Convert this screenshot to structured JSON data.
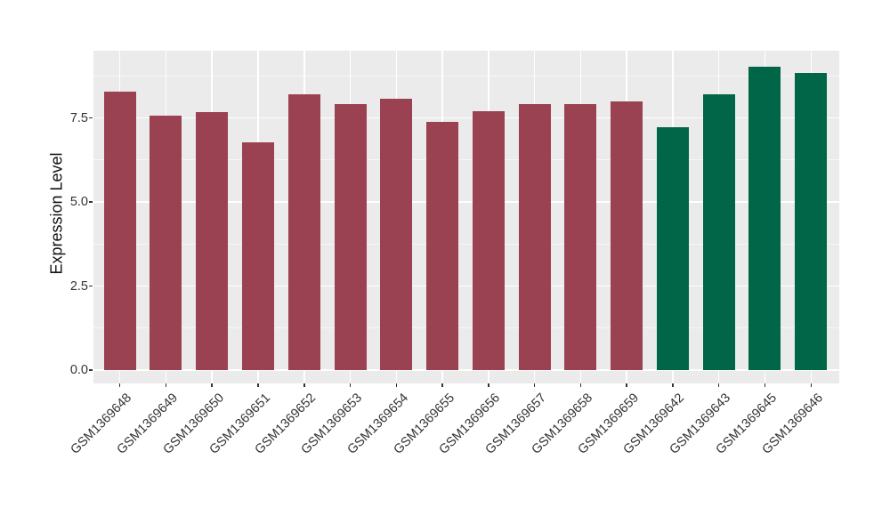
{
  "chart_data": {
    "type": "bar",
    "title": "",
    "xlabel": "",
    "ylabel": "Expression Level",
    "categories": [
      "GSM1369648",
      "GSM1369649",
      "GSM1369650",
      "GSM1369651",
      "GSM1369652",
      "GSM1369653",
      "GSM1369654",
      "GSM1369655",
      "GSM1369656",
      "GSM1369657",
      "GSM1369658",
      "GSM1369659",
      "GSM1369642",
      "GSM1369643",
      "GSM1369645",
      "GSM1369646"
    ],
    "values": [
      8.27,
      7.57,
      7.68,
      6.76,
      8.19,
      7.91,
      8.08,
      7.38,
      7.71,
      7.92,
      7.92,
      7.98,
      7.22,
      8.2,
      9.03,
      8.83
    ],
    "bar_colors": [
      "#9A4252",
      "#9A4252",
      "#9A4252",
      "#9A4252",
      "#9A4252",
      "#9A4252",
      "#9A4252",
      "#9A4252",
      "#9A4252",
      "#9A4252",
      "#9A4252",
      "#9A4252",
      "#006647",
      "#006647",
      "#006647",
      "#006647"
    ],
    "group_palette": {
      "maroon_group": "#9A4252",
      "green_group": "#006647"
    },
    "ytick_values": [
      0,
      2.5,
      5,
      7.5
    ],
    "ytick_labels": [
      "0.0",
      "2.5",
      "5.0",
      "7.5"
    ],
    "y_minor_tick_values": [
      1.25,
      3.75,
      6.25,
      8.75
    ],
    "ylim": [
      -0.4,
      9.47
    ],
    "grid": true,
    "legend_position": "none",
    "panel_bg": "#EBEBEB",
    "grid_color": "#FFFFFF",
    "axis_text_color": "#333333",
    "tick_mark_color": "#333333"
  }
}
